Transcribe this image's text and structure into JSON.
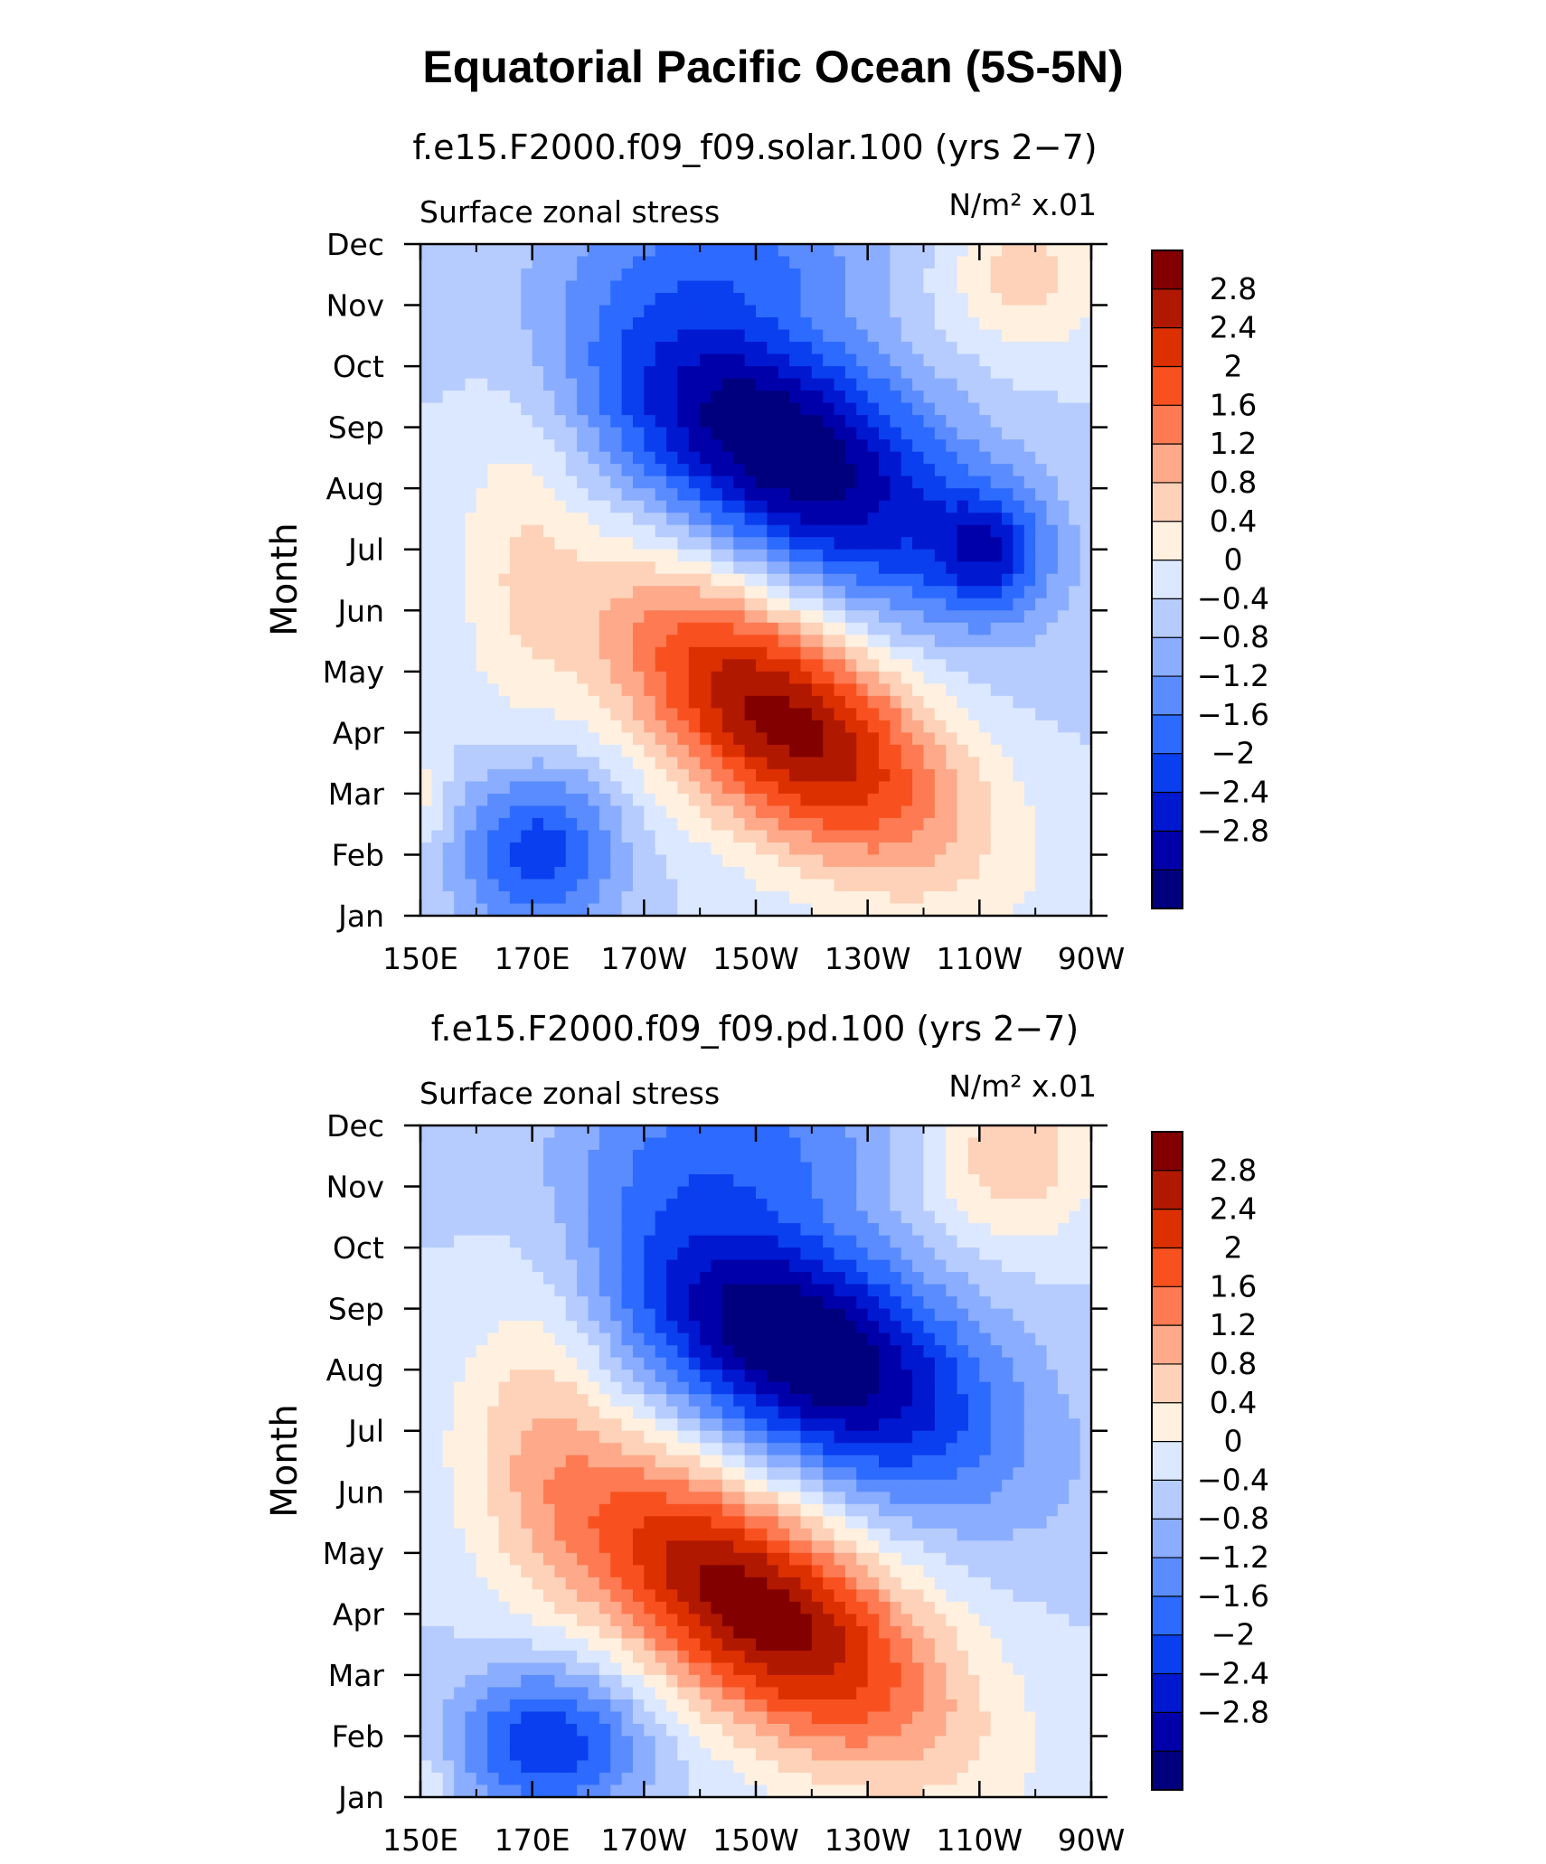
{
  "figure_title": "Equatorial Pacific Ocean (5S-5N)",
  "chart_data": [
    {
      "type": "heatmap",
      "title": "f.e15.F2000.f09_f09.solar.100 (yrs 2−7)",
      "left_string": "Surface zonal stress",
      "right_string": "N/m² x.01",
      "ylabel": "Month",
      "xlabel": "",
      "x_ticks": [
        "150E",
        "170E",
        "170W",
        "150W",
        "130W",
        "110W",
        "90W"
      ],
      "y_ticks": [
        "Jan",
        "Feb",
        "Mar",
        "Apr",
        "May",
        "Jun",
        "Jul",
        "Aug",
        "Sep",
        "Oct",
        "Nov",
        "Dec"
      ],
      "xlim": [
        150,
        270
      ],
      "ylim": [
        1,
        12
      ],
      "levels": [
        "2.8",
        "2.4",
        "2",
        "1.6",
        "1.2",
        "0.8",
        "0.4",
        "0",
        "−0.4",
        "−0.8",
        "−1.2",
        "−1.6",
        "−2",
        "−2.4",
        "−2.8"
      ],
      "features": [
        {
          "lon": 215,
          "month": 4.2,
          "value": 3.4,
          "slon": 22,
          "smon": 1.4,
          "tilt": -0.045
        },
        {
          "lon": 214,
          "month": 8.7,
          "value": -3.3,
          "slon": 24,
          "smon": 1.5,
          "tilt": -0.04
        },
        {
          "lon": 252,
          "month": 7.0,
          "value": -1.6,
          "slon": 7,
          "smon": 0.7,
          "tilt": 0
        },
        {
          "lon": 171,
          "month": 2.1,
          "value": -1.9,
          "slon": 10,
          "smon": 1.0,
          "tilt": 0
        },
        {
          "lon": 168,
          "month": 6.8,
          "value": 0.6,
          "slon": 8,
          "smon": 2.5,
          "tilt": 0
        },
        {
          "lon": 258,
          "month": 11.5,
          "value": 1.0,
          "slon": 10,
          "smon": 0.9,
          "tilt": 0
        },
        {
          "lon": 210,
          "month": 11.9,
          "value": -0.9,
          "slon": 18,
          "smon": 0.7,
          "tilt": 0
        },
        {
          "lon": 151,
          "month": 3.0,
          "value": 0.6,
          "slon": 3,
          "smon": 0.6,
          "tilt": 0
        }
      ]
    },
    {
      "type": "heatmap",
      "title": "f.e15.F2000.f09_f09.pd.100 (yrs 2−7)",
      "left_string": "Surface zonal stress",
      "right_string": "N/m² x.01",
      "ylabel": "Month",
      "xlabel": "",
      "x_ticks": [
        "150E",
        "170E",
        "170W",
        "150W",
        "130W",
        "110W",
        "90W"
      ],
      "y_ticks": [
        "Jan",
        "Feb",
        "Mar",
        "Apr",
        "May",
        "Jun",
        "Jul",
        "Aug",
        "Sep",
        "Oct",
        "Nov",
        "Dec"
      ],
      "xlim": [
        150,
        270
      ],
      "ylim": [
        1,
        12
      ],
      "levels": [
        "2.8",
        "2.4",
        "2",
        "1.6",
        "1.2",
        "0.8",
        "0.4",
        "0",
        "−0.4",
        "−0.8",
        "−1.2",
        "−1.6",
        "−2",
        "−2.4",
        "−2.8"
      ],
      "features": [
        {
          "lon": 210,
          "month": 4.1,
          "value": 3.5,
          "slon": 24,
          "smon": 1.4,
          "tilt": -0.045
        },
        {
          "lon": 218,
          "month": 8.4,
          "value": -3.4,
          "slon": 24,
          "smon": 1.4,
          "tilt": -0.035
        },
        {
          "lon": 173,
          "month": 1.9,
          "value": -2.0,
          "slon": 12,
          "smon": 0.9,
          "tilt": 0
        },
        {
          "lon": 172,
          "month": 7.5,
          "value": 0.7,
          "slon": 10,
          "smon": 2.5,
          "tilt": 0
        },
        {
          "lon": 255,
          "month": 11.5,
          "value": 1.2,
          "slon": 11,
          "smon": 1.0,
          "tilt": 0
        },
        {
          "lon": 208,
          "month": 11.8,
          "value": -1.1,
          "slon": 22,
          "smon": 0.9,
          "tilt": 0
        },
        {
          "lon": 152,
          "month": 1.2,
          "value": 0.5,
          "slon": 3,
          "smon": 0.6,
          "tilt": 0
        }
      ]
    }
  ],
  "colors": {
    "scale": [
      "#00007e",
      "#0000ab",
      "#0018d0",
      "#0a3ff0",
      "#2d6aff",
      "#5a8cff",
      "#8aadff",
      "#b6ccff",
      "#dce8ff",
      "#fff0e0",
      "#fdd2b8",
      "#fda98a",
      "#fd7a52",
      "#f8511f",
      "#dd3000",
      "#b01800",
      "#820000"
    ]
  }
}
